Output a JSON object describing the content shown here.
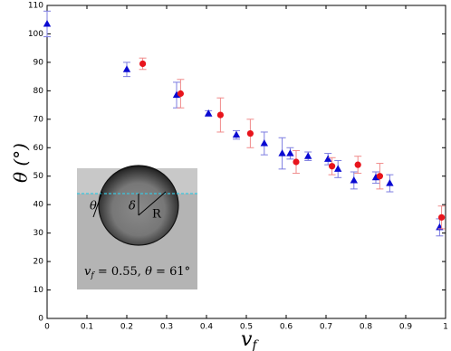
{
  "chart_data": {
    "type": "scatter",
    "xlabel": "v",
    "xlabel_subscript": "f",
    "ylabel": "θ (°)",
    "xlim": [
      0,
      1
    ],
    "xticks": [
      0,
      0.1,
      0.2,
      0.3,
      0.4,
      0.5,
      0.6,
      0.7,
      0.8,
      0.9,
      1
    ],
    "ylim": [
      0,
      110
    ],
    "yticks": [
      0,
      10,
      20,
      30,
      40,
      50,
      60,
      70,
      80,
      90,
      100,
      110
    ],
    "grid": false,
    "series": [
      {
        "marker": "triangle",
        "color": "#0a0ad2",
        "error_color": "#7c7ce0",
        "x": [
          0.0,
          0.2,
          0.325,
          0.405,
          0.475,
          0.545,
          0.59,
          0.61,
          0.655,
          0.705,
          0.73,
          0.77,
          0.825,
          0.86,
          0.985
        ],
        "values": [
          103.5,
          87.5,
          78.5,
          72,
          64.5,
          61.5,
          58,
          58,
          57,
          56,
          52.5,
          48.5,
          49.5,
          47.5,
          32
        ],
        "errors": [
          4.5,
          2.5,
          4.5,
          1,
          1.5,
          4,
          5.5,
          2,
          1.5,
          2,
          3,
          3,
          2,
          3,
          3
        ]
      },
      {
        "marker": "circle",
        "color": "#e8141c",
        "error_color": "#f08a8a",
        "x": [
          0.24,
          0.335,
          0.435,
          0.51,
          0.625,
          0.715,
          0.78,
          0.835,
          0.99
        ],
        "values": [
          89.5,
          79,
          71.5,
          65,
          55,
          53.5,
          54,
          50,
          35.5
        ],
        "errors": [
          2,
          5,
          6,
          5,
          4,
          3,
          3,
          4.5,
          4
        ]
      }
    ]
  },
  "inset": {
    "theta": "θ",
    "delta": "δ",
    "radius": "R",
    "caption": [
      "v",
      "f",
      " = 0.55, ",
      "θ",
      " = 61°"
    ]
  }
}
